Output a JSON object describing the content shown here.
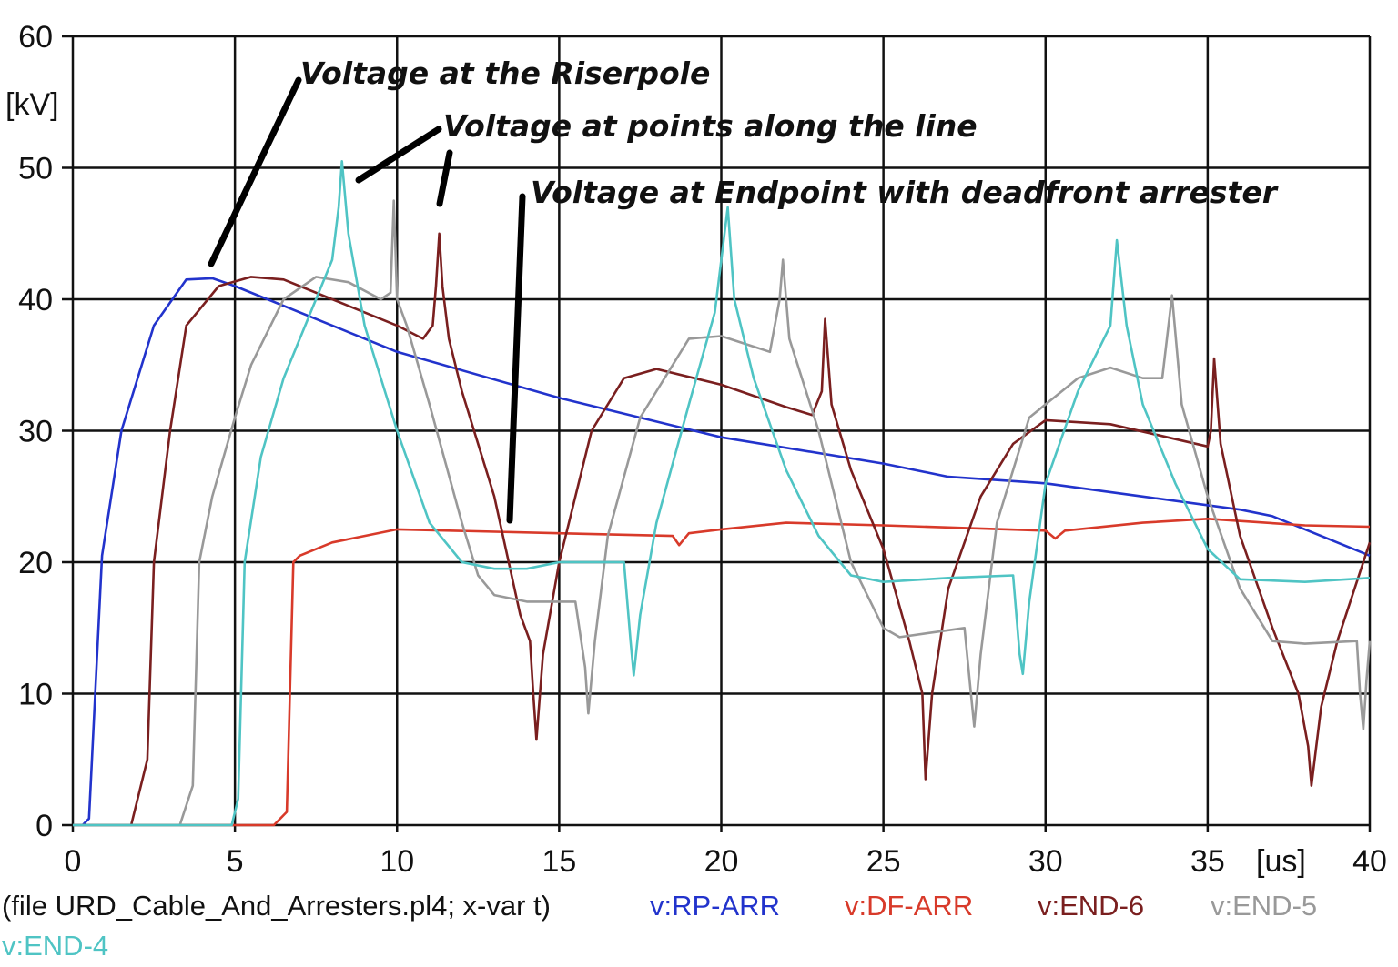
{
  "chart_data": {
    "type": "line",
    "xlabel": "[us]",
    "ylabel": "[kV]",
    "xlim": [
      0,
      40
    ],
    "ylim": [
      0,
      60
    ],
    "x_ticks": [
      "0",
      "5",
      "10",
      "15",
      "20",
      "25",
      "30",
      "35",
      "40"
    ],
    "y_ticks": [
      "0",
      "10",
      "20",
      "30",
      "40",
      "50",
      "60"
    ],
    "grid": true,
    "file_caption": "(file URD_Cable_And_Arresters.pl4; x-var t)",
    "legend_placement": "bottom",
    "annotations": [
      "Voltage at the Riserpole",
      "Voltage at points along the line",
      "Voltage at Endpoint with deadfront arrester"
    ],
    "series": [
      {
        "name": "v:RP-ARR",
        "color": "#2233cc",
        "points": [
          [
            0,
            0
          ],
          [
            0.3,
            0
          ],
          [
            0.5,
            0.5
          ],
          [
            0.9,
            20.5
          ],
          [
            1.5,
            30
          ],
          [
            2.5,
            38
          ],
          [
            3.5,
            41.5
          ],
          [
            4.3,
            41.6
          ],
          [
            5,
            41
          ],
          [
            10,
            36
          ],
          [
            15,
            32.5
          ],
          [
            20,
            29.5
          ],
          [
            25,
            27.5
          ],
          [
            27,
            26.5
          ],
          [
            30,
            26
          ],
          [
            33,
            25
          ],
          [
            36,
            24
          ],
          [
            37,
            23.5
          ],
          [
            38,
            22.5
          ],
          [
            40,
            20.5
          ]
        ]
      },
      {
        "name": "v:DF-ARR",
        "color": "#d83a2a",
        "points": [
          [
            0,
            0
          ],
          [
            6.2,
            0
          ],
          [
            6.6,
            1
          ],
          [
            6.8,
            20
          ],
          [
            7,
            20.5
          ],
          [
            8,
            21.5
          ],
          [
            9,
            22
          ],
          [
            10,
            22.5
          ],
          [
            15,
            22.2
          ],
          [
            18.5,
            22
          ],
          [
            18.7,
            21.3
          ],
          [
            19,
            22.2
          ],
          [
            20,
            22.5
          ],
          [
            22,
            23
          ],
          [
            25,
            22.8
          ],
          [
            30,
            22.4
          ],
          [
            30.3,
            21.8
          ],
          [
            30.6,
            22.4
          ],
          [
            33,
            23
          ],
          [
            35,
            23.3
          ],
          [
            38,
            22.8
          ],
          [
            40,
            22.7
          ]
        ]
      },
      {
        "name": "v:END-6",
        "color": "#7a1f1f",
        "points": [
          [
            0,
            0
          ],
          [
            1.8,
            0
          ],
          [
            2.3,
            5
          ],
          [
            2.5,
            20
          ],
          [
            3,
            30
          ],
          [
            3.5,
            38
          ],
          [
            4.5,
            41
          ],
          [
            5.5,
            41.7
          ],
          [
            6.5,
            41.5
          ],
          [
            8,
            40
          ],
          [
            10,
            38
          ],
          [
            10.8,
            37
          ],
          [
            11.1,
            38
          ],
          [
            11.2,
            41
          ],
          [
            11.3,
            45
          ],
          [
            11.4,
            41
          ],
          [
            11.6,
            37
          ],
          [
            12,
            33
          ],
          [
            13,
            25
          ],
          [
            13.8,
            16
          ],
          [
            14.1,
            14
          ],
          [
            14.2,
            10
          ],
          [
            14.3,
            6.5
          ],
          [
            14.5,
            13
          ],
          [
            15,
            20
          ],
          [
            16,
            30
          ],
          [
            17,
            34
          ],
          [
            18,
            34.7
          ],
          [
            20,
            33.5
          ],
          [
            22,
            31.8
          ],
          [
            22.8,
            31.2
          ],
          [
            23.1,
            33
          ],
          [
            23.2,
            38.5
          ],
          [
            23.4,
            32
          ],
          [
            24,
            27
          ],
          [
            25,
            21
          ],
          [
            25.8,
            14
          ],
          [
            26.2,
            10
          ],
          [
            26.3,
            3.5
          ],
          [
            26.5,
            10
          ],
          [
            27,
            18
          ],
          [
            28,
            25
          ],
          [
            29,
            29
          ],
          [
            30,
            30.8
          ],
          [
            32,
            30.5
          ],
          [
            35,
            28.8
          ],
          [
            35.1,
            30
          ],
          [
            35.2,
            35.5
          ],
          [
            35.4,
            29
          ],
          [
            36,
            22
          ],
          [
            37,
            15
          ],
          [
            37.8,
            10
          ],
          [
            38.1,
            6
          ],
          [
            38.2,
            3
          ],
          [
            38.5,
            9
          ],
          [
            39,
            14
          ],
          [
            40,
            21.5
          ]
        ]
      },
      {
        "name": "v:END-5",
        "color": "#999999",
        "points": [
          [
            0,
            0
          ],
          [
            3.3,
            0
          ],
          [
            3.7,
            3
          ],
          [
            3.9,
            20
          ],
          [
            4.3,
            25
          ],
          [
            5,
            31
          ],
          [
            5.5,
            35
          ],
          [
            6.5,
            40
          ],
          [
            7.5,
            41.7
          ],
          [
            8.5,
            41.3
          ],
          [
            9.5,
            40
          ],
          [
            9.8,
            40.5
          ],
          [
            9.9,
            47.5
          ],
          [
            10,
            40
          ],
          [
            10.3,
            38
          ],
          [
            11,
            32
          ],
          [
            12,
            23
          ],
          [
            12.5,
            19
          ],
          [
            13,
            17.5
          ],
          [
            14,
            17
          ],
          [
            15.5,
            17
          ],
          [
            15.8,
            12
          ],
          [
            15.9,
            8.5
          ],
          [
            16.1,
            14
          ],
          [
            16.5,
            22
          ],
          [
            17.5,
            31
          ],
          [
            19,
            37
          ],
          [
            20,
            37.2
          ],
          [
            21.5,
            36
          ],
          [
            21.8,
            40
          ],
          [
            21.9,
            43
          ],
          [
            22.1,
            37
          ],
          [
            23,
            30
          ],
          [
            24,
            20
          ],
          [
            25,
            15
          ],
          [
            25.5,
            14.3
          ],
          [
            27.5,
            15
          ],
          [
            27.7,
            10
          ],
          [
            27.8,
            7.5
          ],
          [
            28,
            13
          ],
          [
            28.5,
            23
          ],
          [
            29.5,
            31
          ],
          [
            31,
            34
          ],
          [
            32,
            34.8
          ],
          [
            33,
            34
          ],
          [
            33.6,
            34
          ],
          [
            33.9,
            40.3
          ],
          [
            34.2,
            32
          ],
          [
            35,
            25
          ],
          [
            36,
            18
          ],
          [
            37,
            14
          ],
          [
            38,
            13.8
          ],
          [
            39.6,
            14
          ],
          [
            39.7,
            10
          ],
          [
            39.8,
            7.3
          ],
          [
            39.9,
            11
          ],
          [
            40,
            14
          ]
        ]
      },
      {
        "name": "v:END-4",
        "color": "#4fc4c4",
        "points": [
          [
            0,
            0
          ],
          [
            4.9,
            0
          ],
          [
            5.1,
            2
          ],
          [
            5.3,
            20
          ],
          [
            5.8,
            28
          ],
          [
            6.5,
            34
          ],
          [
            7.5,
            40
          ],
          [
            8,
            43
          ],
          [
            8.2,
            47
          ],
          [
            8.3,
            50.5
          ],
          [
            8.5,
            45
          ],
          [
            9,
            38
          ],
          [
            10,
            30
          ],
          [
            11,
            23
          ],
          [
            12,
            20
          ],
          [
            13,
            19.5
          ],
          [
            14,
            19.5
          ],
          [
            15,
            20
          ],
          [
            17,
            20
          ],
          [
            17.2,
            14
          ],
          [
            17.3,
            11.4
          ],
          [
            17.5,
            16
          ],
          [
            18,
            23
          ],
          [
            19,
            32
          ],
          [
            19.8,
            39
          ],
          [
            20.2,
            47
          ],
          [
            20.4,
            40
          ],
          [
            21,
            34
          ],
          [
            22,
            27
          ],
          [
            23,
            22
          ],
          [
            24,
            19
          ],
          [
            25,
            18.5
          ],
          [
            27,
            18.8
          ],
          [
            29,
            19
          ],
          [
            29.2,
            13
          ],
          [
            29.3,
            11.5
          ],
          [
            29.5,
            17
          ],
          [
            30,
            26
          ],
          [
            31,
            33
          ],
          [
            32,
            38
          ],
          [
            32.2,
            44.5
          ],
          [
            32.5,
            38
          ],
          [
            33,
            32
          ],
          [
            34,
            26
          ],
          [
            35,
            21
          ],
          [
            36,
            18.7
          ],
          [
            38,
            18.5
          ],
          [
            40,
            18.8
          ]
        ]
      }
    ]
  }
}
